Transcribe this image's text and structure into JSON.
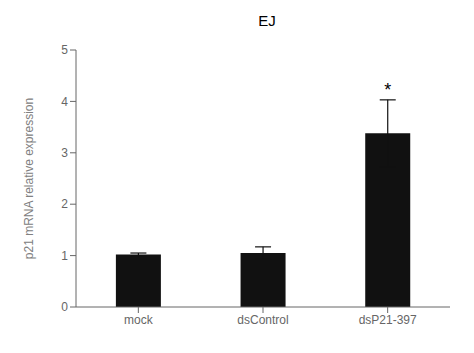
{
  "chart_data": {
    "type": "bar",
    "title": "EJ",
    "ylabel": "p21 mRNA relative expression",
    "categories": [
      "mock",
      "dsControl",
      "dsP21-397"
    ],
    "values": [
      1.02,
      1.05,
      3.38
    ],
    "errors": [
      0.03,
      0.12,
      0.65
    ],
    "color": "#111111",
    "ylim": [
      0,
      5
    ],
    "yticks": [
      0,
      1,
      2,
      3,
      4,
      5
    ],
    "grid": false,
    "annotations": [
      {
        "text": "*",
        "x": "dsP21-397"
      }
    ]
  }
}
